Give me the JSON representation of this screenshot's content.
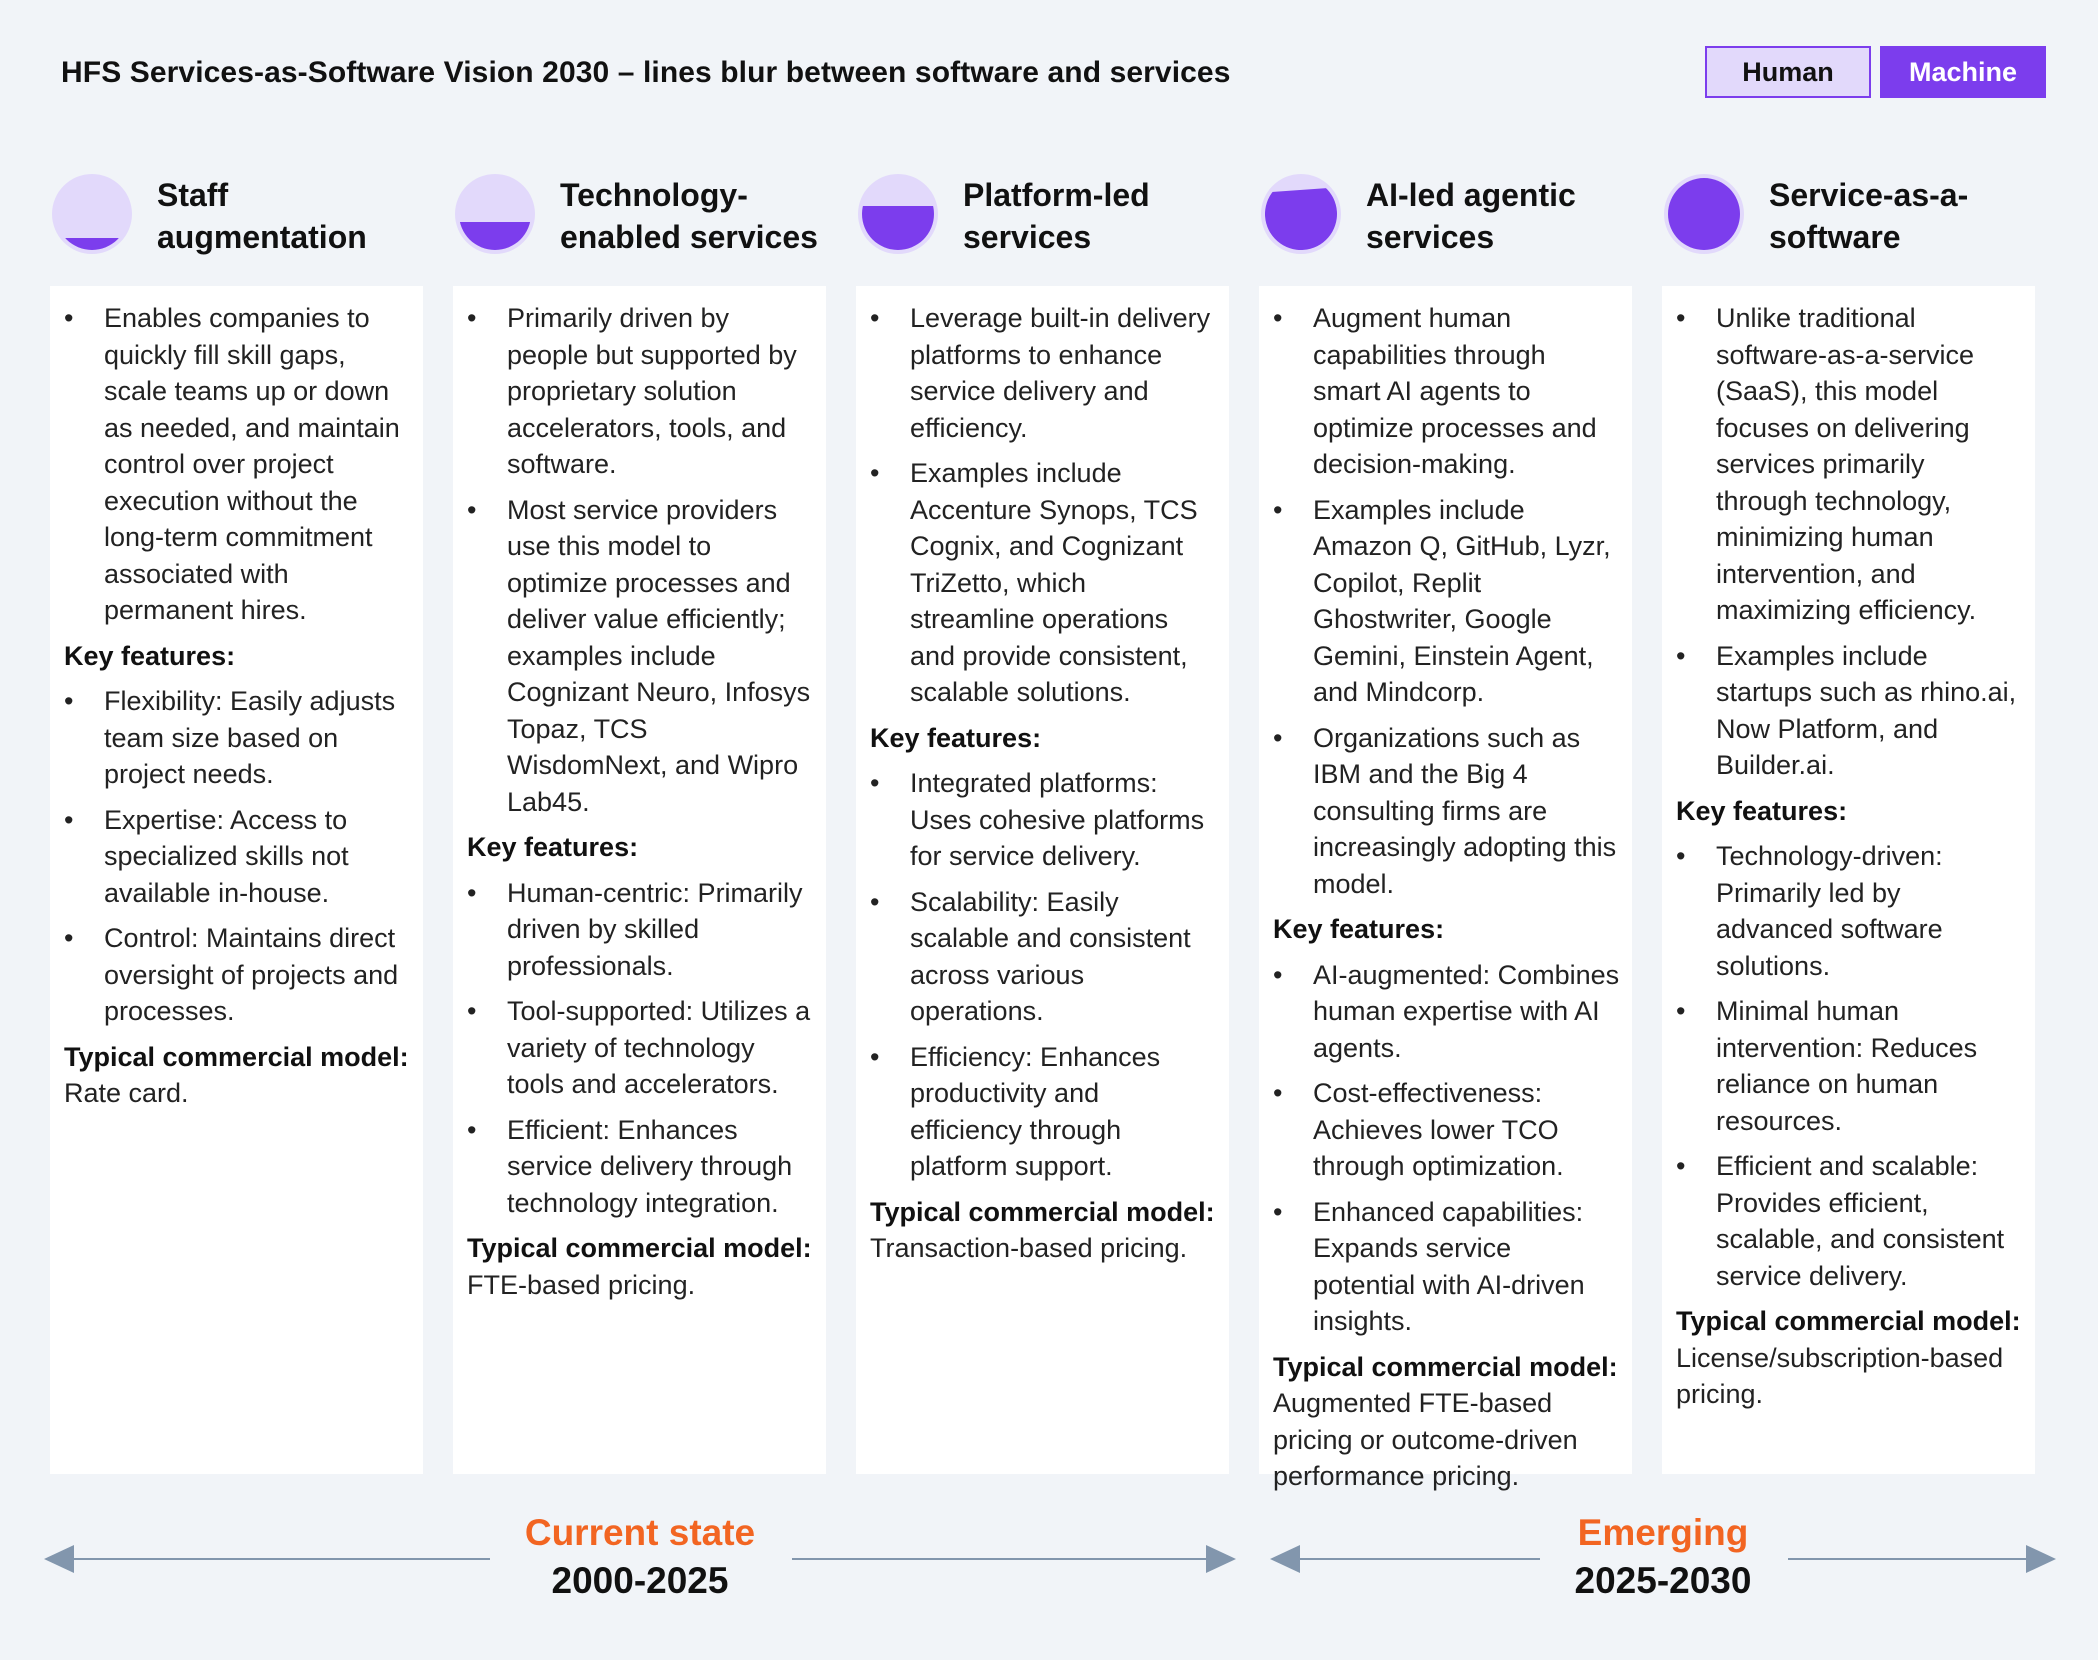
{
  "title": "HFS Services-as-Software Vision 2030 – lines blur between software and services",
  "legend": {
    "human": "Human",
    "machine": "Machine"
  },
  "colors": {
    "human": "#e2d9fb",
    "machine": "#7c3ded",
    "accent": "#f26522",
    "arrow": "#8296ad"
  },
  "columns": [
    {
      "title": "Staff\naugmentation",
      "machine_fill": 0.2,
      "bullets": [
        "Enables companies to quickly fill skill gaps, scale teams up or down as needed, and maintain control over project execution without the long-term commitment associated with permanent hires."
      ],
      "key_features_label": "Key features:",
      "features": [
        "Flexibility: Easily adjusts team size based on project needs.",
        "Expertise: Access to specialized skills not available in-house.",
        "Control: Maintains direct oversight of projects and processes."
      ],
      "commercial_label": "Typical commercial model:",
      "commercial_value": "Rate card."
    },
    {
      "title": "Technology-\nenabled services",
      "machine_fill": 0.4,
      "bullets": [
        "Primarily driven by people but supported by proprietary solution accelerators, tools, and software.",
        "Most service providers use this model to optimize processes and deliver value efficiently; examples include Cognizant Neuro, Infosys Topaz, TCS WisdomNext, and Wipro Lab45."
      ],
      "key_features_label": "Key features:",
      "features": [
        "Human-centric: Primarily driven by skilled professionals.",
        "Tool-supported: Utilizes a variety of technology tools and accelerators.",
        "Efficient: Enhances service delivery through technology integration."
      ],
      "commercial_label": "Typical commercial model:",
      "commercial_value": "FTE-based pricing."
    },
    {
      "title": "Platform-led\nservices",
      "machine_fill": 0.6,
      "bullets": [
        "Leverage built-in delivery platforms to enhance service delivery and efficiency.",
        "Examples include Accenture Synops, TCS Cognix, and Cognizant TriZetto, which streamline operations and provide consistent, scalable solutions."
      ],
      "key_features_label": "Key features:",
      "features": [
        "Integrated platforms: Uses cohesive platforms for service delivery.",
        "Scalability: Easily scalable and consistent across various operations.",
        "Efficiency: Enhances productivity and efficiency through platform support."
      ],
      "commercial_label": "Typical commercial model:",
      "commercial_value": "Transaction-based pricing."
    },
    {
      "title": "AI-led agentic\nservices",
      "machine_fill": 0.8,
      "bullets": [
        "Augment human capabilities through smart AI agents to optimize processes and decision-making.",
        "Examples include Amazon Q, GitHub, Lyzr, Copilot, Replit Ghostwriter, Google Gemini, Einstein Agent, and Mindcorp.",
        "Organizations such as IBM and the Big 4 consulting firms are increasingly adopting this model."
      ],
      "key_features_label": "Key features:",
      "features": [
        "AI-augmented: Combines human expertise with AI agents.",
        "Cost-effectiveness: Achieves lower TCO through optimization.",
        "Enhanced capabilities: Expands service potential with AI-driven insights."
      ],
      "commercial_label": "Typical commercial model:",
      "commercial_value": "Augmented FTE-based pricing or outcome-driven performance pricing."
    },
    {
      "title": "Service-as-a-\nsoftware",
      "machine_fill": 1.0,
      "bullets": [
        "Unlike traditional software-as-a-service (SaaS), this model focuses on delivering services primarily through technology, minimizing human intervention, and maximizing efficiency.",
        "Examples include startups such as rhino.ai, Now Platform, and Builder.ai."
      ],
      "key_features_label": "Key features:",
      "features": [
        "Technology-driven: Primarily led by advanced software solutions.",
        "Minimal human intervention: Reduces reliance on human resources.",
        "Efficient and scalable: Provides efficient, scalable, and consistent service delivery."
      ],
      "commercial_label": "Typical commercial model:",
      "commercial_value": "License/subscription-based pricing.",
      "commercial_break": true
    }
  ],
  "timeline": {
    "current": {
      "name": "Current state",
      "years": "2000-2025"
    },
    "emerging": {
      "name": "Emerging",
      "years": "2025-2030"
    }
  }
}
